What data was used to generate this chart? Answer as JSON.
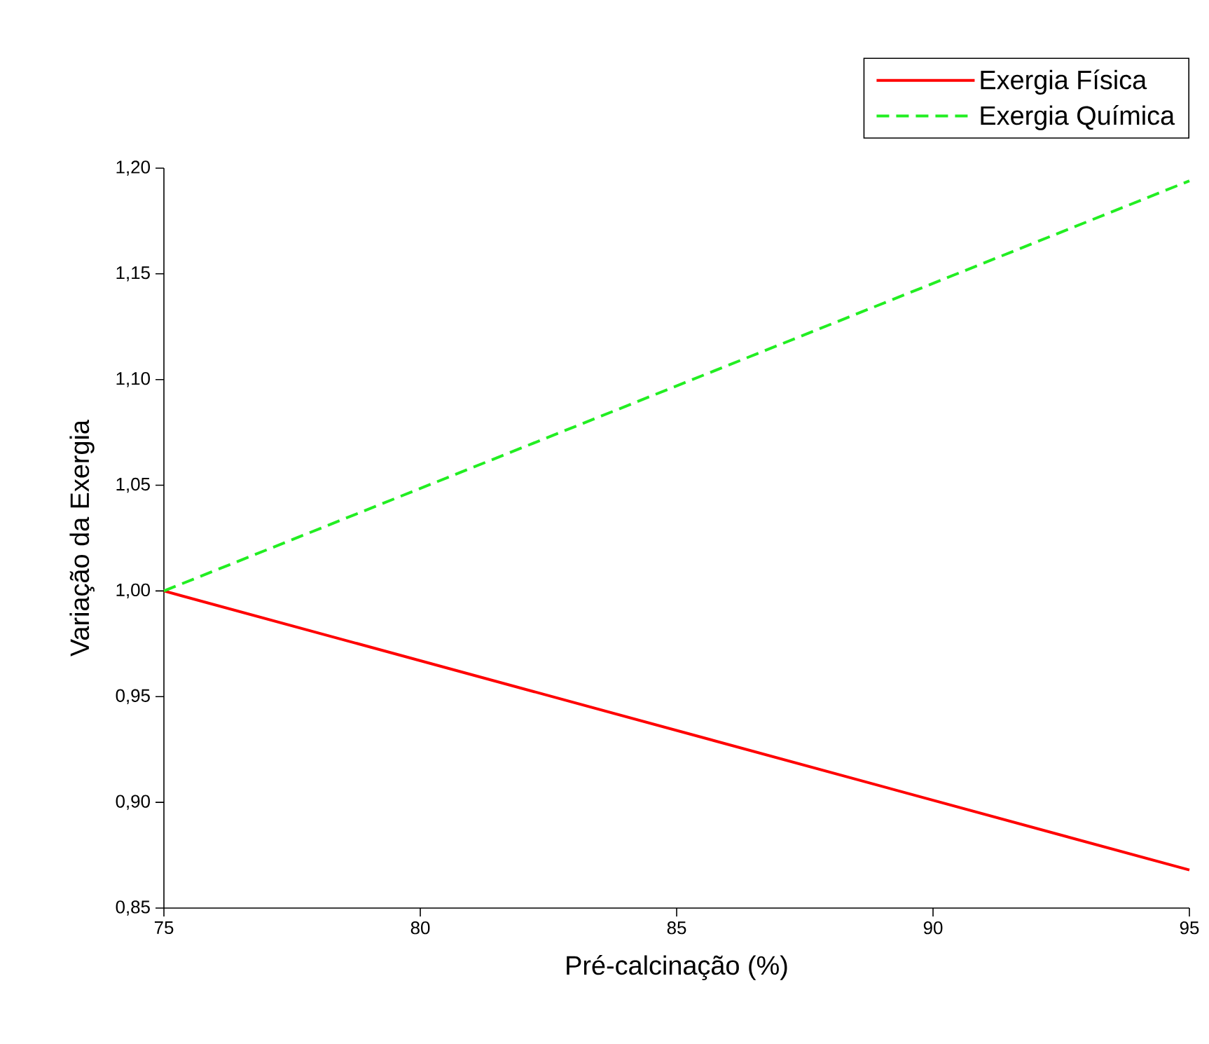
{
  "chart_data": {
    "type": "line",
    "xlabel": "Pré-calcinação (%)",
    "ylabel": "Variação da Exergia",
    "x": [
      75,
      95
    ],
    "series": [
      {
        "name": "Exergia Física",
        "color": "#ff0000",
        "line_style": "solid",
        "values": [
          1.0,
          0.868
        ]
      },
      {
        "name": "Exergia Química",
        "color": "#22ee22",
        "line_style": "dashed",
        "values": [
          1.0,
          1.194
        ]
      }
    ],
    "xlim": [
      75,
      95
    ],
    "xticks": [
      75,
      80,
      85,
      90,
      95
    ],
    "ylim": [
      0.85,
      1.2
    ],
    "yticks": [
      {
        "value": 0.85,
        "label": "0,85"
      },
      {
        "value": 0.9,
        "label": "0,90"
      },
      {
        "value": 0.95,
        "label": "0,95"
      },
      {
        "value": 1.0,
        "label": "1,00"
      },
      {
        "value": 1.05,
        "label": "1,05"
      },
      {
        "value": 1.1,
        "label": "1,10"
      },
      {
        "value": 1.15,
        "label": "1,15"
      },
      {
        "value": 1.2,
        "label": "1,20"
      }
    ],
    "grid": false,
    "legend": "top right",
    "marker": "none"
  }
}
